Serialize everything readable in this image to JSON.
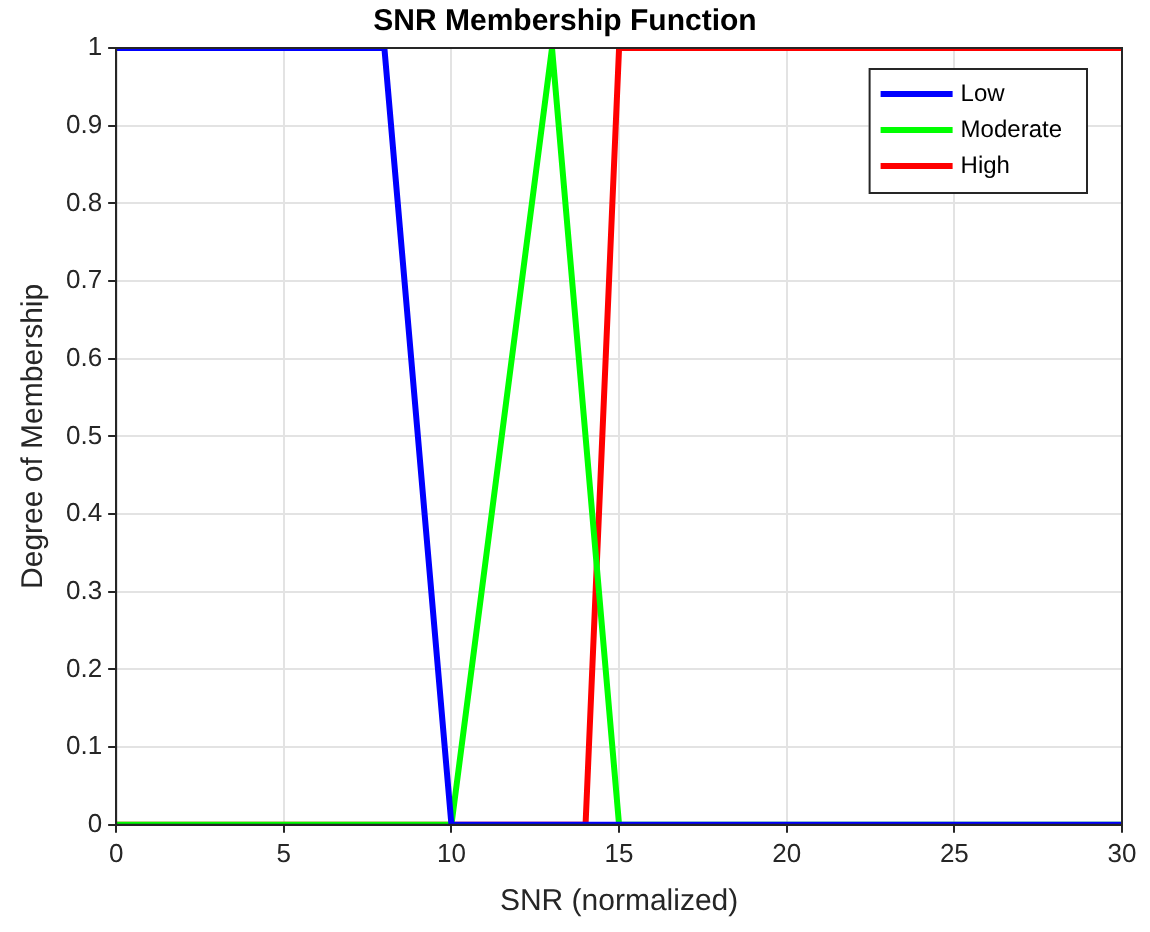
{
  "chart_data": {
    "type": "line",
    "title": "SNR Membership Function",
    "xlabel": "SNR (normalized)",
    "ylabel": "Degree of Membership",
    "xlim": [
      0,
      30
    ],
    "xticks": [
      0,
      5,
      10,
      15,
      20,
      25,
      30
    ],
    "ylim": [
      0,
      1
    ],
    "yticks": [
      0,
      0.1,
      0.2,
      0.3,
      0.4,
      0.5,
      0.6,
      0.7,
      0.8,
      0.9,
      1
    ],
    "grid": true,
    "legend": "top right",
    "marker": "none",
    "line_style": "solid",
    "series": [
      {
        "name": "Low",
        "color": "#0000ff",
        "x": [
          0,
          8,
          10,
          30
        ],
        "values": [
          1,
          1,
          0,
          0
        ]
      },
      {
        "name": "Moderate",
        "color": "#00ff00",
        "x": [
          0,
          10,
          13,
          15,
          30
        ],
        "values": [
          0,
          0,
          1,
          0,
          0
        ]
      },
      {
        "name": "High",
        "color": "#ff0000",
        "x": [
          0,
          14,
          15,
          30
        ],
        "values": [
          0,
          0,
          1,
          1
        ]
      }
    ]
  }
}
